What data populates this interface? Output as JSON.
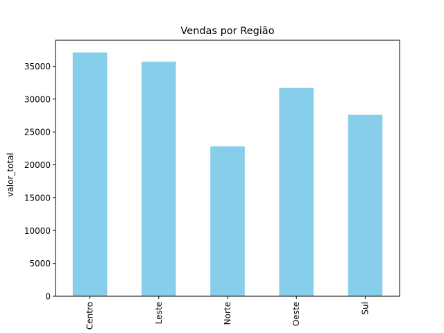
{
  "chart_data": {
    "type": "bar",
    "title": "Vendas por Região",
    "xlabel": "",
    "ylabel": "valor_total",
    "categories": [
      "Centro",
      "Leste",
      "Norte",
      "Oeste",
      "Sul"
    ],
    "values": [
      37100,
      35700,
      22800,
      31700,
      27600
    ],
    "ylim": [
      0,
      38955
    ],
    "yticks": [
      0,
      5000,
      10000,
      15000,
      20000,
      25000,
      30000,
      35000
    ],
    "bar_color": "#87ceeb",
    "grid": false,
    "legend": false
  }
}
